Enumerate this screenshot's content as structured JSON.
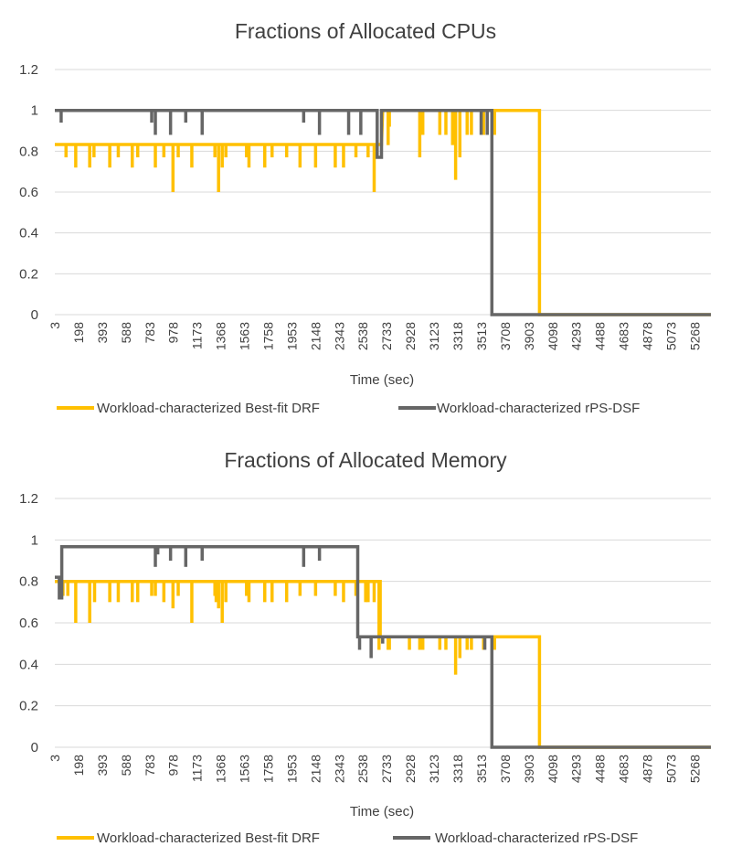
{
  "colors": {
    "drf": "#FFC000",
    "dsf": "#666666",
    "grid": "#D9D9D9",
    "text": "#404040"
  },
  "chart_data": [
    {
      "type": "line",
      "title": "Fractions of Allocated CPUs",
      "xlabel": "Time (sec)",
      "ylabel": "",
      "ylim": [
        0,
        1.2
      ],
      "yticks": [
        "0",
        "0.2",
        "0.4",
        "0.6",
        "0.8",
        "1",
        "1.2"
      ],
      "xlim": [
        3,
        5400
      ],
      "xticks": [
        "3",
        "198",
        "393",
        "588",
        "783",
        "978",
        "1173",
        "1368",
        "1563",
        "1758",
        "1953",
        "2148",
        "2343",
        "2538",
        "2733",
        "2928",
        "3123",
        "3318",
        "3513",
        "3708",
        "3903",
        "4098",
        "4293",
        "4488",
        "4683",
        "4878",
        "5073",
        "5268"
      ],
      "grid": true,
      "legend_position": "bottom",
      "series": [
        {
          "name": "Workload-characterized Best-fit DRF",
          "color": "#FFC000",
          "base": [
            [
              3,
              0.833
            ],
            [
              2690,
              0.833
            ],
            [
              2700,
              1.0
            ],
            [
              3990,
              1.0
            ],
            [
              3990,
              0.0
            ],
            [
              5400,
              0.0
            ]
          ],
          "dips": [
            [
              95,
              0.77
            ],
            [
              175,
              0.72
            ],
            [
              290,
              0.72
            ],
            [
              325,
              0.77
            ],
            [
              455,
              0.72
            ],
            [
              525,
              0.77
            ],
            [
              640,
              0.72
            ],
            [
              685,
              0.77
            ],
            [
              830,
              0.72
            ],
            [
              900,
              0.77
            ],
            [
              975,
              0.6
            ],
            [
              1018,
              0.77
            ],
            [
              1130,
              0.72
            ],
            [
              1320,
              0.77
            ],
            [
              1350,
              0.6
            ],
            [
              1380,
              0.72
            ],
            [
              1410,
              0.77
            ],
            [
              1580,
              0.77
            ],
            [
              1600,
              0.72
            ],
            [
              1730,
              0.72
            ],
            [
              1790,
              0.77
            ],
            [
              1910,
              0.77
            ],
            [
              2020,
              0.72
            ],
            [
              2148,
              0.72
            ],
            [
              2310,
              0.72
            ],
            [
              2378,
              0.72
            ],
            [
              2480,
              0.77
            ],
            [
              2580,
              0.77
            ],
            [
              2630,
              0.6
            ],
            [
              2745,
              0.83
            ],
            [
              2755,
              0.92
            ],
            [
              3005,
              0.77
            ],
            [
              3030,
              0.88
            ],
            [
              3170,
              0.88
            ],
            [
              3220,
              0.88
            ],
            [
              3275,
              0.83
            ],
            [
              3300,
              0.66
            ],
            [
              3335,
              0.77
            ],
            [
              3395,
              0.88
            ],
            [
              3430,
              0.88
            ],
            [
              3530,
              0.88
            ],
            [
              3620,
              0.88
            ]
          ]
        },
        {
          "name": "Workload-characterized rPS-DSF",
          "color": "#666666",
          "base": [
            [
              3,
              1.0
            ],
            [
              2655,
              1.0
            ],
            [
              2655,
              0.77
            ],
            [
              2690,
              0.77
            ],
            [
              2690,
              1.0
            ],
            [
              3598,
              1.0
            ],
            [
              3598,
              0.0
            ],
            [
              5400,
              0.0
            ]
          ],
          "dips": [
            [
              55,
              0.94
            ],
            [
              800,
              0.94
            ],
            [
              830,
              0.88
            ],
            [
              955,
              0.88
            ],
            [
              1080,
              0.94
            ],
            [
              1215,
              0.88
            ],
            [
              2050,
              0.94
            ],
            [
              2180,
              0.88
            ],
            [
              2420,
              0.88
            ],
            [
              2520,
              0.88
            ],
            [
              3510,
              0.88
            ],
            [
              3560,
              0.88
            ]
          ]
        }
      ]
    },
    {
      "type": "line",
      "title": "Fractions of Allocated Memory",
      "xlabel": "Time (sec)",
      "ylabel": "",
      "ylim": [
        0,
        1.2
      ],
      "yticks": [
        "0",
        "0.2",
        "0.4",
        "0.6",
        "0.8",
        "1",
        "1.2"
      ],
      "xlim": [
        3,
        5400
      ],
      "xticks": [
        "3",
        "198",
        "393",
        "588",
        "783",
        "978",
        "1173",
        "1368",
        "1563",
        "1758",
        "1953",
        "2148",
        "2343",
        "2538",
        "2733",
        "2928",
        "3123",
        "3318",
        "3513",
        "3708",
        "3903",
        "4098",
        "4293",
        "4488",
        "4683",
        "4878",
        "5073",
        "5268"
      ],
      "grid": true,
      "legend_position": "bottom",
      "series": [
        {
          "name": "Workload-characterized Best-fit DRF",
          "color": "#FFC000",
          "base": [
            [
              3,
              0.8
            ],
            [
              2680,
              0.8
            ],
            [
              2680,
              0.533
            ],
            [
              3990,
              0.533
            ],
            [
              3990,
              0.0
            ],
            [
              5400,
              0.0
            ]
          ],
          "dips": [
            [
              70,
              0.73
            ],
            [
              110,
              0.73
            ],
            [
              175,
              0.6
            ],
            [
              290,
              0.6
            ],
            [
              330,
              0.7
            ],
            [
              455,
              0.7
            ],
            [
              525,
              0.7
            ],
            [
              640,
              0.7
            ],
            [
              685,
              0.7
            ],
            [
              800,
              0.73
            ],
            [
              830,
              0.73
            ],
            [
              900,
              0.7
            ],
            [
              975,
              0.67
            ],
            [
              1018,
              0.73
            ],
            [
              1130,
              0.6
            ],
            [
              1320,
              0.73
            ],
            [
              1330,
              0.7
            ],
            [
              1350,
              0.67
            ],
            [
              1380,
              0.6
            ],
            [
              1410,
              0.7
            ],
            [
              1580,
              0.73
            ],
            [
              1600,
              0.7
            ],
            [
              1730,
              0.7
            ],
            [
              1790,
              0.7
            ],
            [
              1910,
              0.7
            ],
            [
              2020,
              0.73
            ],
            [
              2148,
              0.73
            ],
            [
              2310,
              0.73
            ],
            [
              2378,
              0.7
            ],
            [
              2480,
              0.73
            ],
            [
              2580,
              0.7
            ],
            [
              2630,
              0.7
            ],
            [
              2745,
              0.47
            ],
            [
              2755,
              0.47
            ],
            [
              2920,
              0.47
            ],
            [
              3005,
              0.47
            ],
            [
              3030,
              0.47
            ],
            [
              3170,
              0.47
            ],
            [
              3220,
              0.47
            ],
            [
              3300,
              0.35
            ],
            [
              3335,
              0.43
            ],
            [
              3395,
              0.47
            ],
            [
              3430,
              0.47
            ],
            [
              3530,
              0.47
            ],
            [
              3620,
              0.47
            ],
            [
              2670,
              0.47
            ],
            [
              2560,
              0.7
            ]
          ]
        },
        {
          "name": "Workload-characterized rPS-DSF",
          "color": "#666666",
          "base": [
            [
              3,
              0.82
            ],
            [
              40,
              0.82
            ],
            [
              40,
              0.72
            ],
            [
              60,
              0.72
            ],
            [
              60,
              0.967
            ],
            [
              2495,
              0.967
            ],
            [
              2495,
              0.533
            ],
            [
              3598,
              0.533
            ],
            [
              3598,
              0.0
            ],
            [
              5400,
              0.0
            ]
          ],
          "dips": [
            [
              830,
              0.87
            ],
            [
              850,
              0.93
            ],
            [
              955,
              0.9
            ],
            [
              1080,
              0.87
            ],
            [
              1215,
              0.9
            ],
            [
              2050,
              0.87
            ],
            [
              2180,
              0.9
            ],
            [
              2510,
              0.47
            ],
            [
              2605,
              0.43
            ],
            [
              2700,
              0.5
            ],
            [
              3540,
              0.47
            ]
          ]
        }
      ]
    }
  ],
  "legend": {
    "drf_label": "Workload-characterized Best-fit DRF",
    "dsf_label": "Workload-characterized rPS-DSF"
  }
}
